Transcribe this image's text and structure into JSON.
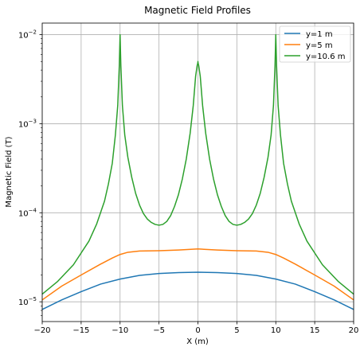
{
  "chart_data": {
    "type": "line",
    "title": "Magnetic Field Profiles",
    "xlabel": "X (m)",
    "ylabel": "Magnetic Field (T)",
    "xlim": [
      -20,
      20
    ],
    "ylim": [
      6e-06,
      0.0135
    ],
    "yscale": "log",
    "grid": true,
    "legend_position": "top-right",
    "x_ticks": [
      -20,
      -15,
      -10,
      -5,
      0,
      5,
      10,
      15,
      20
    ],
    "x_tick_labels": [
      "−20",
      "−15",
      "−10",
      "−5",
      "0",
      "5",
      "10",
      "15",
      "20"
    ],
    "y_ticks": [
      1e-05,
      0.0001,
      0.001,
      0.01
    ],
    "y_tick_labels": [
      {
        "base": "10",
        "exp": "−5"
      },
      {
        "base": "10",
        "exp": "−4"
      },
      {
        "base": "10",
        "exp": "−3"
      },
      {
        "base": "10",
        "exp": "−2"
      }
    ],
    "series": [
      {
        "name": "y=1 m",
        "color": "#1f77b4",
        "x": [
          -20,
          -17.5,
          -15,
          -12.5,
          -10,
          -7.5,
          -5,
          -2.5,
          0,
          2.5,
          5,
          7.5,
          10,
          12.5,
          15,
          17.5,
          20
        ],
        "y": [
          8.2e-06,
          1.05e-05,
          1.3e-05,
          1.58e-05,
          1.8e-05,
          1.98e-05,
          2.08e-05,
          2.13e-05,
          2.15e-05,
          2.13e-05,
          2.08e-05,
          1.98e-05,
          1.8e-05,
          1.58e-05,
          1.3e-05,
          1.05e-05,
          8.2e-06
        ]
      },
      {
        "name": "y=5 m",
        "color": "#ff7f0e",
        "x": [
          -20,
          -17.5,
          -15,
          -12.5,
          -11,
          -10,
          -9,
          -7.5,
          -5,
          -2.5,
          0,
          2.5,
          5,
          7.5,
          9,
          10,
          11,
          12.5,
          15,
          17.5,
          20
        ],
        "y": [
          1.05e-05,
          1.5e-05,
          2e-05,
          2.65e-05,
          3.1e-05,
          3.4e-05,
          3.6e-05,
          3.72e-05,
          3.75e-05,
          3.82e-05,
          3.92e-05,
          3.82e-05,
          3.75e-05,
          3.72e-05,
          3.6e-05,
          3.4e-05,
          3.1e-05,
          2.65e-05,
          2e-05,
          1.5e-05,
          1.05e-05
        ]
      },
      {
        "name": "y=10.6 m",
        "color": "#2ca02c",
        "x": [
          -20,
          -18,
          -16,
          -14,
          -13,
          -12,
          -11.5,
          -11,
          -10.6,
          -10.3,
          -10.1,
          -10.02,
          -10,
          -9.98,
          -9.9,
          -9.7,
          -9.4,
          -9,
          -8.5,
          -8,
          -7.5,
          -7,
          -6.5,
          -6,
          -5.5,
          -5,
          -4.5,
          -4,
          -3.5,
          -3,
          -2.5,
          -2,
          -1.5,
          -1,
          -0.6,
          -0.3,
          -0.1,
          -0.02,
          0,
          0.02,
          0.1,
          0.3,
          0.6,
          1,
          1.5,
          2,
          2.5,
          3,
          3.5,
          4,
          4.5,
          5,
          5.5,
          6,
          6.5,
          7,
          7.5,
          8,
          8.5,
          9,
          9.4,
          9.7,
          9.9,
          9.98,
          10,
          10.02,
          10.1,
          10.3,
          10.6,
          11,
          11.5,
          12,
          13,
          14,
          16,
          18,
          20
        ],
        "y": [
          1.22e-05,
          1.7e-05,
          2.6e-05,
          4.8e-05,
          7.5e-05,
          0.000135,
          0.00021,
          0.00036,
          0.00075,
          0.0016,
          0.0045,
          0.0085,
          0.01,
          0.0085,
          0.0045,
          0.0016,
          0.00075,
          0.00042,
          0.00025,
          0.000165,
          0.000122,
          9.8e-05,
          8.5e-05,
          7.8e-05,
          7.4e-05,
          7.25e-05,
          7.4e-05,
          8e-05,
          9.3e-05,
          0.000118,
          0.00016,
          0.00024,
          0.0004,
          0.00078,
          0.0016,
          0.0034,
          0.0045,
          0.0048,
          0.005,
          0.0048,
          0.0045,
          0.0034,
          0.0016,
          0.00078,
          0.0004,
          0.00024,
          0.00016,
          0.000118,
          9.3e-05,
          8e-05,
          7.4e-05,
          7.25e-05,
          7.4e-05,
          7.8e-05,
          8.5e-05,
          9.8e-05,
          0.000122,
          0.000165,
          0.00025,
          0.00042,
          0.00075,
          0.0016,
          0.0045,
          0.0085,
          0.01,
          0.0085,
          0.0045,
          0.0016,
          0.00075,
          0.00036,
          0.00021,
          0.000135,
          7.5e-05,
          4.8e-05,
          2.6e-05,
          1.7e-05,
          1.22e-05
        ]
      }
    ]
  }
}
